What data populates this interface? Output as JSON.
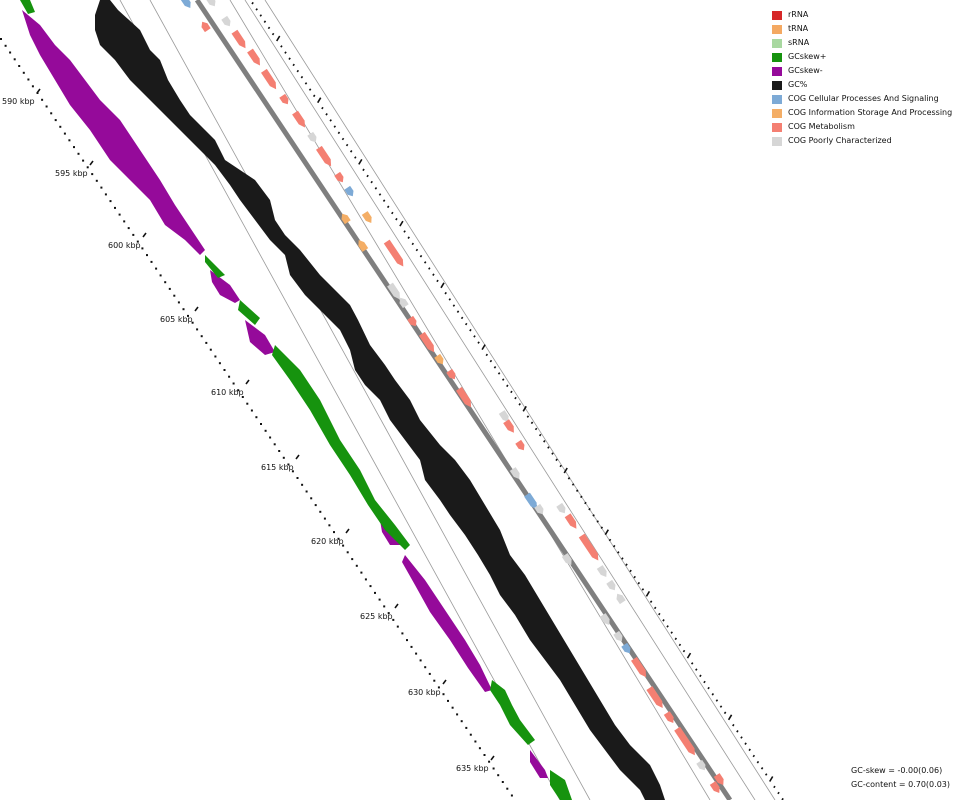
{
  "map": {
    "kbp_ticks": [
      "590 kbp",
      "595 kbp",
      "600 kbp",
      "605 kbp",
      "610 kbp",
      "615 kbp",
      "620 kbp",
      "625 kbp",
      "630 kbp",
      "635 kbp"
    ]
  },
  "legend": {
    "items": [
      {
        "label": "rRNA",
        "color": "#d62728"
      },
      {
        "label": "tRNA",
        "color": "#f4a962"
      },
      {
        "label": "sRNA",
        "color": "#a8d8a0"
      },
      {
        "label": "GCskew+",
        "color": "#16930e"
      },
      {
        "label": "GCskew-",
        "color": "#950a9a"
      },
      {
        "label": "GC%",
        "color": "#1a1a1a"
      },
      {
        "label": "COG Cellular Processes And Signaling",
        "color": "#7daad6"
      },
      {
        "label": "COG Information Storage And Processing",
        "color": "#f4ae66"
      },
      {
        "label": "COG Metabolism",
        "color": "#f47f72"
      },
      {
        "label": "COG Poorly Characterized",
        "color": "#d6d6d6"
      }
    ]
  },
  "stats": {
    "gc_skew": "GC-skew = -0.00(0.06)",
    "gc_content": "GC-content = 0.70(0.03)"
  }
}
